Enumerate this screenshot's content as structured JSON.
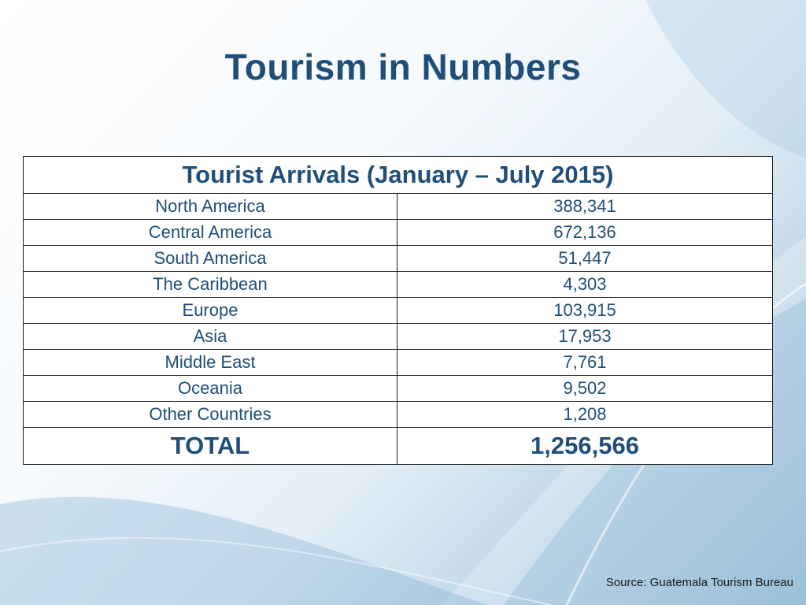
{
  "slide": {
    "title": "Tourism in Numbers"
  },
  "table": {
    "heading": "Tourist Arrivals  (January – July 2015)",
    "rows": [
      {
        "region": "North America",
        "value": "388,341"
      },
      {
        "region": "Central America",
        "value": "672,136"
      },
      {
        "region": "South America",
        "value": "51,447"
      },
      {
        "region": "The Caribbean",
        "value": "4,303"
      },
      {
        "region": "Europe",
        "value": "103,915"
      },
      {
        "region": "Asia",
        "value": "17,953"
      },
      {
        "region": "Middle East",
        "value": "7,761"
      },
      {
        "region": "Oceania",
        "value": "9,502"
      },
      {
        "region": "Other Countries",
        "value": "1,208"
      }
    ],
    "total": {
      "label": "TOTAL",
      "value": "1,256,566"
    }
  },
  "source": "Source: Guatemala Tourism Bureau",
  "colors": {
    "title": "#1f4e79",
    "table_text": "#1f4e79",
    "border": "#1a1a1a"
  }
}
